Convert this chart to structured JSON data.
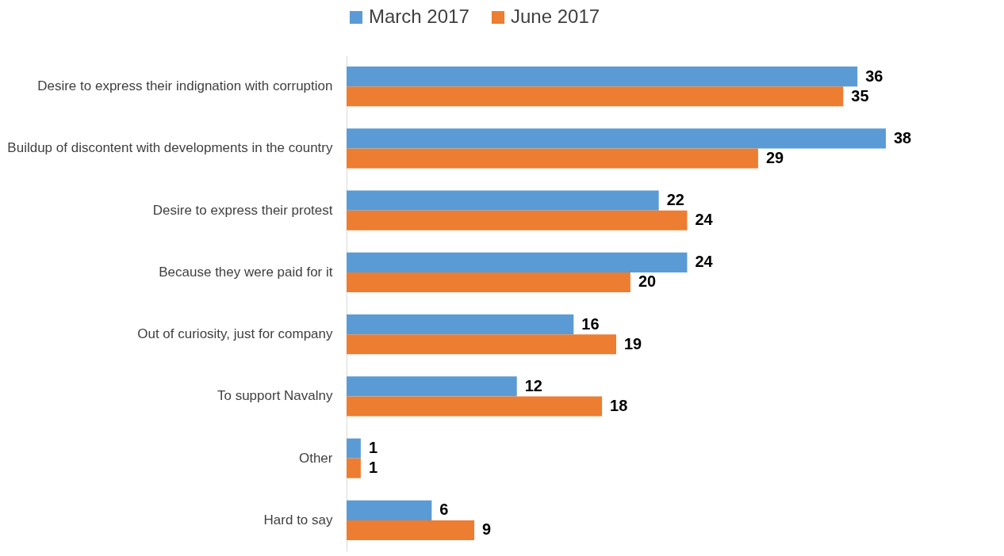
{
  "chart_data": {
    "type": "bar",
    "orientation": "horizontal",
    "categories": [
      "Desire to express their indignation with corruption",
      "Buildup of discontent with developments in the country",
      "Desire to express their protest",
      "Because they were paid for it",
      "Out of curiosity, just for company",
      "To support Navalny",
      "Other",
      "Hard to say"
    ],
    "series": [
      {
        "name": "March 2017",
        "color": "#5b9bd5",
        "values": [
          36,
          38,
          22,
          24,
          16,
          12,
          1,
          6
        ]
      },
      {
        "name": "June 2017",
        "color": "#ed7d31",
        "values": [
          35,
          29,
          24,
          20,
          19,
          18,
          1,
          9
        ]
      }
    ],
    "data_labels": true,
    "legend": "top",
    "grid": false
  }
}
